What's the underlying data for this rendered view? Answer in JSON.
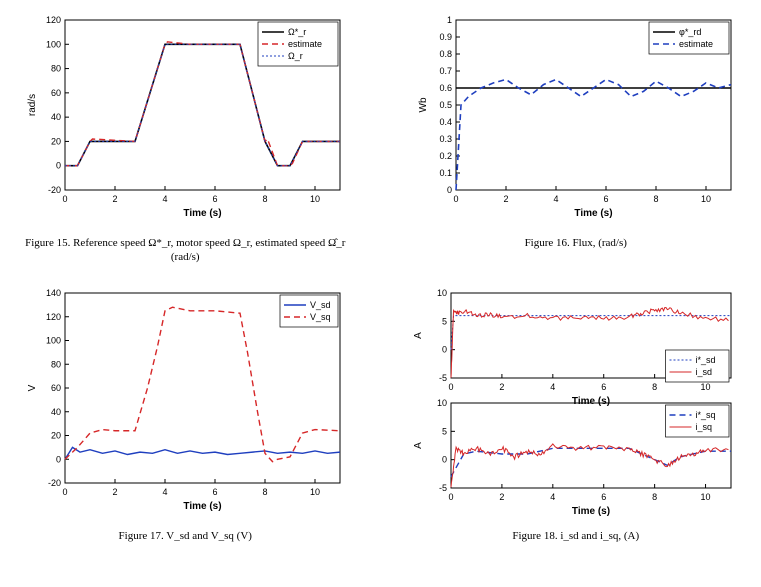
{
  "fig15": {
    "type": "line",
    "title_caption": "Figure 15.   Reference speed Ω*_r, motor speed Ω_r,\nestimated speed Ω̂_r (rad/s)",
    "xlabel": "Time (s)",
    "ylabel": "rad/s",
    "xlim": [
      0,
      11
    ],
    "ylim": [
      -20,
      120
    ],
    "xtick_step": 2,
    "ytick_step": 20,
    "axis_fontsize": 9,
    "legend": [
      {
        "label": "Ω*_r",
        "color": "#000000",
        "dash": "none",
        "width": 1.6
      },
      {
        "label": "estimate",
        "color": "#d62728",
        "dash": "6,4",
        "width": 1.4
      },
      {
        "label": "Ω_r",
        "color": "#1f3fbf",
        "dash": "2,2",
        "width": 1.0
      }
    ],
    "legend_pos": "top-right",
    "series": {
      "ref": {
        "x": [
          0,
          0.5,
          1,
          2.8,
          4,
          5,
          7,
          8,
          8.5,
          9,
          9.5,
          11
        ],
        "y": [
          0,
          0,
          20,
          20,
          100,
          100,
          100,
          20,
          0,
          0,
          20,
          20
        ]
      },
      "est": {
        "x": [
          0,
          0.5,
          1,
          1.1,
          2.8,
          4,
          4.1,
          5,
          7,
          8,
          8.1,
          8.5,
          9,
          9.1,
          9.5,
          11
        ],
        "y": [
          0,
          0,
          20,
          22,
          20,
          100,
          102,
          100,
          100,
          20,
          22,
          0,
          0,
          2,
          20,
          20
        ]
      },
      "omega": {
        "x": [
          0,
          0.5,
          1,
          2.8,
          4,
          5,
          7,
          8,
          8.5,
          9,
          9.5,
          11
        ],
        "y": [
          0,
          0,
          20,
          20,
          100,
          100,
          100,
          20,
          0,
          0,
          20,
          20
        ]
      }
    },
    "background_color": "#ffffff",
    "axis_color": "#000000"
  },
  "fig16": {
    "type": "line",
    "title_caption": "Figure 16. Flux, (rad/s)",
    "xlabel": "Time (s)",
    "ylabel": "Wb",
    "xlim": [
      0,
      11
    ],
    "ylim": [
      0,
      1
    ],
    "xtick_step": 2,
    "ytick_step": 0.1,
    "axis_fontsize": 9,
    "legend": [
      {
        "label": "φ*_rd",
        "color": "#000000",
        "dash": "none",
        "width": 1.6
      },
      {
        "label": "estimate",
        "color": "#1f3fbf",
        "dash": "6,4",
        "width": 1.6
      }
    ],
    "legend_pos": "top-right",
    "series": {
      "ref": {
        "x": [
          0,
          11
        ],
        "y": [
          0.6,
          0.6
        ]
      },
      "est": {
        "x": [
          0,
          0.2,
          0.5,
          1,
          1.5,
          2,
          2.5,
          3,
          3.5,
          4,
          4.5,
          5,
          5.5,
          6,
          6.5,
          7,
          7.5,
          8,
          8.5,
          9,
          9.5,
          10,
          10.5,
          11
        ],
        "y": [
          0,
          0.5,
          0.55,
          0.6,
          0.63,
          0.65,
          0.6,
          0.56,
          0.62,
          0.65,
          0.6,
          0.55,
          0.6,
          0.65,
          0.62,
          0.55,
          0.58,
          0.64,
          0.6,
          0.55,
          0.58,
          0.63,
          0.6,
          0.62
        ]
      }
    },
    "background_color": "#ffffff",
    "axis_color": "#000000"
  },
  "fig17": {
    "type": "line",
    "title_caption": "Figure 17. V_sd and V_sq (V)",
    "xlabel": "Time (s)",
    "ylabel": "V",
    "xlim": [
      0,
      11
    ],
    "ylim": [
      -20,
      140
    ],
    "xtick_step": 2,
    "ytick_step": 20,
    "axis_fontsize": 9,
    "legend": [
      {
        "label": "V_sd",
        "color": "#1f3fbf",
        "dash": "none",
        "width": 1.4
      },
      {
        "label": "V_sq",
        "color": "#d62728",
        "dash": "6,4",
        "width": 1.4
      }
    ],
    "legend_pos": "top-right",
    "series": {
      "vsd_x": [
        0,
        0.3,
        0.6,
        1,
        1.5,
        2,
        2.5,
        3,
        3.5,
        4,
        4.5,
        5,
        5.5,
        6,
        6.5,
        7,
        7.5,
        8,
        8.5,
        9,
        9.5,
        10,
        10.5,
        11
      ],
      "vsd_y": [
        0,
        10,
        6,
        8,
        5,
        7,
        4,
        6,
        5,
        8,
        5,
        7,
        5,
        6,
        4,
        5,
        6,
        7,
        5,
        6,
        5,
        7,
        5,
        6
      ],
      "vsq_x": [
        0,
        0.5,
        1,
        1.5,
        2,
        2.8,
        3.3,
        3.7,
        4,
        4.3,
        5,
        6,
        7,
        7.3,
        7.7,
        8,
        8.3,
        8.5,
        9,
        9.5,
        10,
        11
      ],
      "vsq_y": [
        0,
        10,
        22,
        25,
        24,
        24,
        60,
        95,
        125,
        128,
        125,
        125,
        123,
        90,
        40,
        5,
        -2,
        0,
        2,
        22,
        25,
        24
      ]
    },
    "background_color": "#ffffff",
    "axis_color": "#000000"
  },
  "fig18": {
    "type": "subplots-2x1",
    "title_caption": "Figure 18. i_sd and i_sq, (A)",
    "xlabel": "Time (s)",
    "ylabel": "A",
    "xlim": [
      0,
      11
    ],
    "xtick_step": 2,
    "axis_fontsize": 9,
    "top": {
      "ylim": [
        -5,
        10
      ],
      "ytick_step": 5,
      "legend": [
        {
          "label": "i*_sd",
          "color": "#1f3fbf",
          "dash": "2,2",
          "width": 1.0
        },
        {
          "label": "i_sd",
          "color": "#d62728",
          "dash": "none",
          "width": 1.0
        }
      ],
      "series": {
        "ref_x": [
          0,
          0.1,
          11
        ],
        "ref_y": [
          0,
          6,
          6
        ],
        "val_x": [
          0,
          0.1,
          0.3,
          0.6,
          1,
          1.5,
          2,
          3,
          4,
          5,
          6,
          7,
          7.5,
          8,
          8.5,
          9,
          10,
          11
        ],
        "val_y": [
          -5,
          7,
          6.5,
          6.8,
          6,
          6.2,
          5.8,
          6,
          5.5,
          5.8,
          5.5,
          5.8,
          6.3,
          7,
          7.2,
          6.5,
          5.5,
          5.2
        ]
      }
    },
    "bottom": {
      "ylim": [
        -5,
        10
      ],
      "ytick_step": 5,
      "legend": [
        {
          "label": "i*_sq",
          "color": "#1f3fbf",
          "dash": "6,4",
          "width": 1.4
        },
        {
          "label": "i_sq",
          "color": "#d62728",
          "dash": "none",
          "width": 1.0
        }
      ],
      "series": {
        "ref_x": [
          0,
          0.5,
          1,
          2,
          3,
          4,
          5,
          6,
          7,
          8,
          8.5,
          9,
          10,
          11
        ],
        "ref_y": [
          -3,
          1,
          1.5,
          1,
          1,
          2,
          2,
          2,
          2,
          0,
          -1,
          0.5,
          1.5,
          1.5
        ],
        "val_x": [
          0,
          0.2,
          0.5,
          1,
          1.5,
          2,
          2.5,
          3,
          3.5,
          4,
          5,
          6,
          7,
          7.5,
          8,
          8.5,
          9,
          9.5,
          10,
          11
        ],
        "val_y": [
          -5,
          2,
          1,
          2,
          1,
          2,
          0.5,
          1.5,
          1,
          2.5,
          2,
          2.2,
          1.8,
          1,
          0,
          -1,
          0.5,
          1,
          1.8,
          1.5
        ]
      }
    },
    "background_color": "#ffffff",
    "axis_color": "#000000"
  }
}
